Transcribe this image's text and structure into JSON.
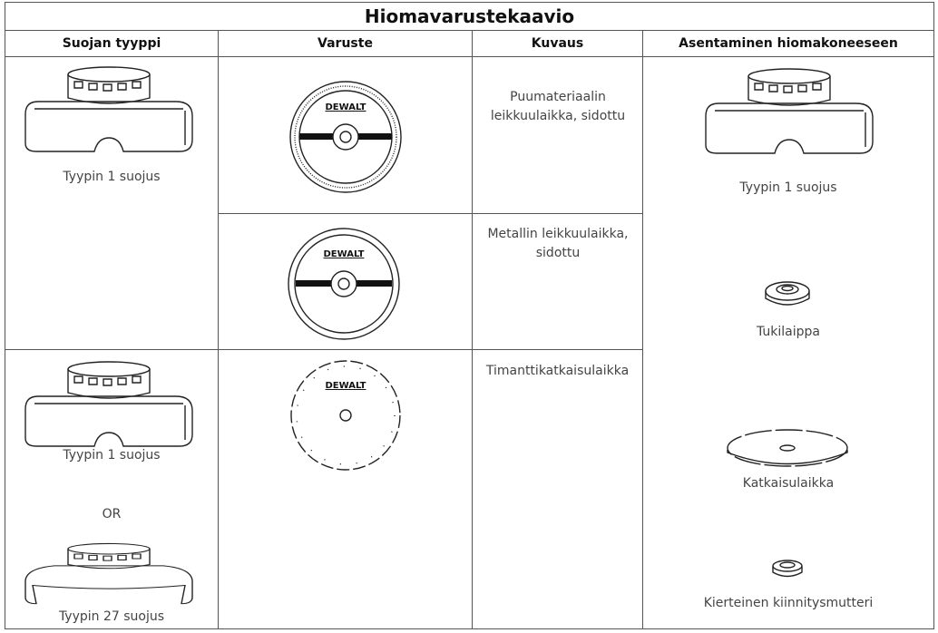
{
  "header": {
    "title": "Hiomavarustekaavio"
  },
  "table": {
    "columns": [
      "Suojan tyyppi",
      "Varuste",
      "Kuvaus",
      "Asentaminen hiomakoneeseen"
    ],
    "guard_types": [
      {
        "labels": [
          "Tyypin 1 suojus"
        ]
      },
      {
        "labels": [
          "Tyypin 1 suojus",
          "OR",
          "Tyypin 27 suojus"
        ]
      }
    ],
    "accessories": [
      {
        "logo": "DEWALT",
        "description": "Puumateriaalin leikkuulaikka, sidottu"
      },
      {
        "logo": "DEWALT",
        "description": "Metallin leikkuulaikka, sidottu"
      },
      {
        "logo": "DEWALT",
        "description": "Timanttikatkaisulaikka"
      }
    ],
    "assembly": [
      "Tyypin 1 suojus",
      "Tukilaippa",
      "Katkaisulaikka",
      "Kierteinen kiinnitysmutteri"
    ]
  }
}
